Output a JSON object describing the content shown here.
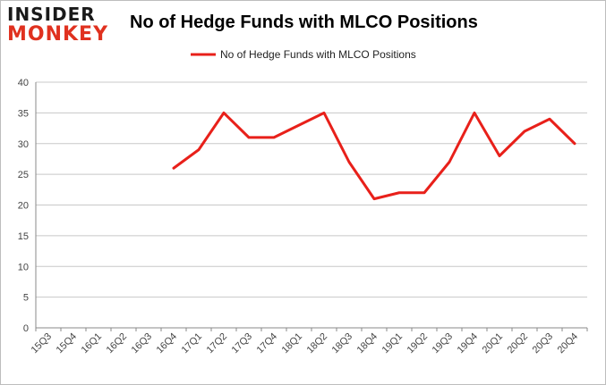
{
  "logo": {
    "line1": "INSIDER",
    "line2": "MONKEY"
  },
  "chart_data": {
    "type": "line",
    "title": "No of Hedge Funds with MLCO Positions",
    "xlabel": "",
    "ylabel": "",
    "categories": [
      "15Q3",
      "15Q4",
      "16Q1",
      "16Q2",
      "16Q3",
      "16Q4",
      "17Q1",
      "17Q2",
      "17Q3",
      "17Q4",
      "18Q1",
      "18Q2",
      "18Q3",
      "18Q4",
      "19Q1",
      "19Q2",
      "19Q3",
      "19Q4",
      "20Q1",
      "20Q2",
      "20Q3",
      "20Q4"
    ],
    "series": [
      {
        "name": "No of Hedge Funds with MLCO Positions",
        "color": "#e8201a",
        "values": [
          null,
          null,
          null,
          null,
          null,
          26,
          29,
          35,
          31,
          31,
          33,
          35,
          27,
          21,
          22,
          22,
          27,
          35,
          28,
          32,
          34,
          30
        ]
      }
    ],
    "ylim": [
      0,
      40
    ],
    "yticks": [
      0,
      5,
      10,
      15,
      20,
      25,
      30,
      35,
      40
    ],
    "grid": true,
    "legend": "top-center"
  }
}
